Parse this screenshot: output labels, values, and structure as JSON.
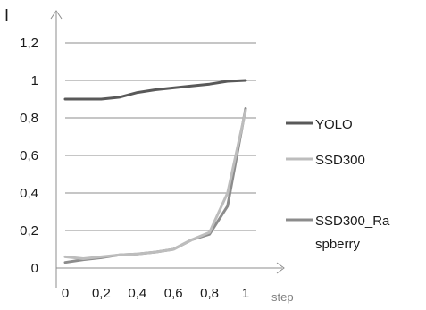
{
  "chart_data": {
    "type": "line",
    "xlabel": "step",
    "ylabel": "I",
    "x": [
      0,
      0.1,
      0.2,
      0.3,
      0.4,
      0.5,
      0.6,
      0.7,
      0.8,
      0.9,
      1
    ],
    "x_tick_labels": [
      "0",
      "0,2",
      "0,4",
      "0,6",
      "0,8",
      "1"
    ],
    "x_tick_values": [
      0,
      0.2,
      0.4,
      0.6,
      0.8,
      1
    ],
    "y_tick_labels": [
      "0",
      "0,2",
      "0,4",
      "0,6",
      "0,8",
      "1",
      "1,2"
    ],
    "y_tick_values": [
      0,
      0.2,
      0.4,
      0.6,
      0.8,
      1,
      1.2
    ],
    "xlim": [
      0,
      1
    ],
    "ylim": [
      0,
      1.2
    ],
    "grid": "horizontal",
    "legend_position": "right",
    "series": [
      {
        "name": "YOLO",
        "color": "#595959",
        "values": [
          0.9,
          0.9,
          0.9,
          0.91,
          0.935,
          0.95,
          0.96,
          0.97,
          0.98,
          0.995,
          1.0
        ]
      },
      {
        "name": "SSD300",
        "color": "#bdbdbd",
        "values": [
          0.06,
          0.05,
          0.06,
          0.07,
          0.075,
          0.085,
          0.1,
          0.15,
          0.19,
          0.4,
          0.84
        ]
      },
      {
        "name": "SSD300_Raspberry",
        "legend_lines": [
          "SSD300_Ra",
          "spberry"
        ],
        "color": "#8c8c8c",
        "values": [
          0.03,
          0.045,
          0.055,
          0.07,
          0.075,
          0.085,
          0.1,
          0.15,
          0.18,
          0.33,
          0.85
        ]
      }
    ]
  }
}
